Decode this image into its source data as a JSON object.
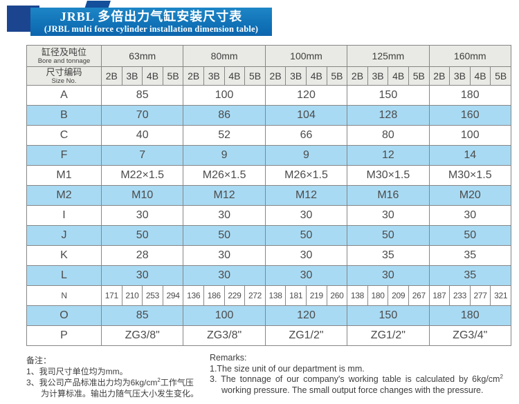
{
  "banner": {
    "title_cn": "JRBL 多倍出力气缸安装尺寸表",
    "title_en": "(JRBL multi force cylinder installation dimension table)",
    "banner_color": "#1173b8",
    "block_color": "#1c4590"
  },
  "table": {
    "corner_row1_cn": "缸径及吨位",
    "corner_row1_en": "Bore and tonnage",
    "corner_row2_cn": "尺寸编码",
    "corner_row2_en": "Size No.",
    "groups": [
      "63mm",
      "80mm",
      "100mm",
      "125mm",
      "160mm"
    ],
    "sub_cols": [
      "2B",
      "3B",
      "4B",
      "5B"
    ],
    "shade_color": "#a9daf3",
    "header_bg": "#e9e9e5",
    "rows": [
      {
        "label": "A",
        "shade": false,
        "values": [
          "85",
          "100",
          "120",
          "150",
          "180"
        ]
      },
      {
        "label": "B",
        "shade": true,
        "values": [
          "70",
          "86",
          "104",
          "128",
          "160"
        ]
      },
      {
        "label": "C",
        "shade": false,
        "values": [
          "40",
          "52",
          "66",
          "80",
          "100"
        ]
      },
      {
        "label": "F",
        "shade": true,
        "values": [
          "7",
          "9",
          "9",
          "12",
          "14"
        ]
      },
      {
        "label": "M1",
        "shade": false,
        "values": [
          "M22×1.5",
          "M26×1.5",
          "M26×1.5",
          "M30×1.5",
          "M30×1.5"
        ]
      },
      {
        "label": "M2",
        "shade": true,
        "values": [
          "M10",
          "M12",
          "M12",
          "M16",
          "M20"
        ]
      },
      {
        "label": "I",
        "shade": false,
        "values": [
          "30",
          "30",
          "30",
          "30",
          "30"
        ]
      },
      {
        "label": "J",
        "shade": true,
        "values": [
          "50",
          "50",
          "50",
          "50",
          "50"
        ]
      },
      {
        "label": "K",
        "shade": false,
        "values": [
          "28",
          "30",
          "30",
          "35",
          "35"
        ]
      },
      {
        "label": "L",
        "shade": true,
        "values": [
          "30",
          "30",
          "30",
          "30",
          "35"
        ]
      },
      {
        "label": "N",
        "shade": false,
        "values": [
          "171",
          "210",
          "253",
          "294",
          "136",
          "186",
          "229",
          "272",
          "138",
          "181",
          "219",
          "260",
          "138",
          "180",
          "209",
          "267",
          "187",
          "233",
          "277",
          "321"
        ]
      },
      {
        "label": "O",
        "shade": true,
        "values": [
          "85",
          "100",
          "120",
          "150",
          "180"
        ]
      },
      {
        "label": "P",
        "shade": false,
        "values": [
          "ZG3/8\"",
          "ZG3/8\"",
          "ZG1/2\"",
          "ZG1/2\"",
          "ZG3/4\""
        ]
      }
    ]
  },
  "notes_cn": {
    "heading": "备注：",
    "line1": "1、我司尺寸单位均为mm。",
    "line2_pre": "3、我公司产品标准出力均为6kg/cm",
    "line2_sup": "2",
    "line2_post": "工作气压",
    "line3": "为计算标准。输出力随气压大小发生变化。"
  },
  "notes_en": {
    "heading": "Remarks:",
    "line1": "1.The size unit of our department is mm.",
    "line2_pre": "3. The tonnage of our company's working table is calculated by 6kg/cm",
    "line2_sup": "2",
    "line3": "working pressure. The small output force changes with the pressure."
  }
}
